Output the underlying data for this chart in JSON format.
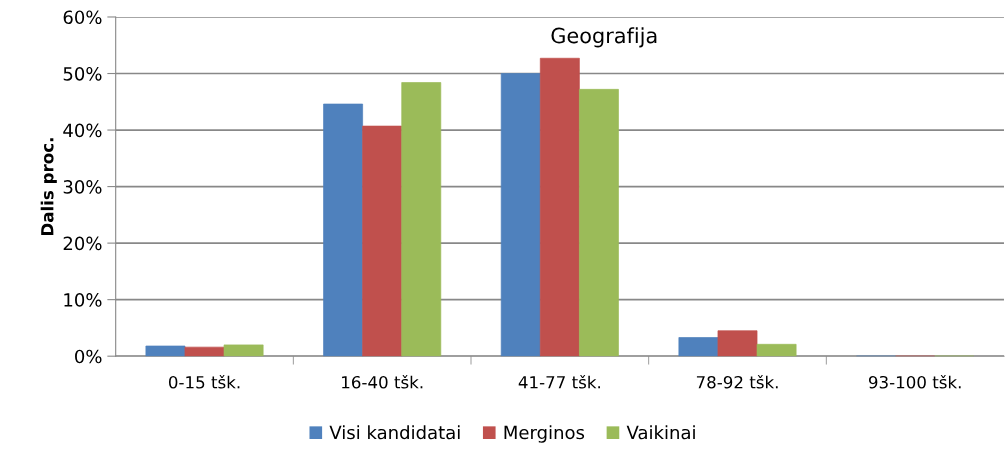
{
  "chart_data": {
    "type": "bar",
    "title": "Geografija",
    "ylabel": "Dalis proc.",
    "categories": [
      "0-15 tšk.",
      "16-40 tšk.",
      "41-77 tšk.",
      "78-92 tšk.",
      "93-100 tšk."
    ],
    "series": [
      {
        "name": "Visi kandidatai",
        "color": "#4f81bd",
        "values": [
          1.8,
          44.6,
          50.0,
          3.3,
          0
        ]
      },
      {
        "name": "Merginos",
        "color": "#c0504d",
        "values": [
          1.6,
          40.7,
          52.7,
          4.5,
          0
        ]
      },
      {
        "name": "Vaikinai",
        "color": "#9bbb59",
        "values": [
          2.0,
          48.4,
          47.2,
          2.1,
          0
        ]
      }
    ],
    "ylim": [
      0,
      60
    ],
    "yticks": [
      {
        "value": 0,
        "label": "0%"
      },
      {
        "value": 10,
        "label": "10%"
      },
      {
        "value": 20,
        "label": "20%"
      },
      {
        "value": 30,
        "label": "30%"
      },
      {
        "value": 40,
        "label": "40%"
      },
      {
        "value": 50,
        "label": "50%"
      },
      {
        "value": 60,
        "label": "60%"
      }
    ],
    "grid": "y",
    "legend": "bottom"
  }
}
